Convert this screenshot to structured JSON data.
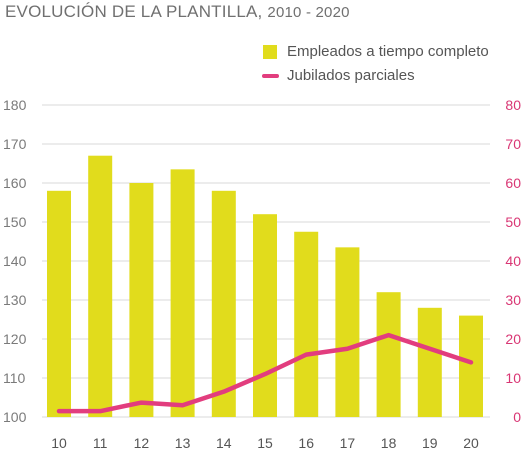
{
  "header": {
    "title_main": "EVOLUCIÓN DE LA PLANTILLA,",
    "title_years": "2010 - 2020"
  },
  "colors": {
    "bars": "#e1dc1c",
    "line": "#e23d7e",
    "right_axis": "#d93674",
    "grid": "#d8d8d8"
  },
  "chart_data": {
    "type": "bar",
    "title": "EVOLUCIÓN DE LA PLANTILLA, 2010 - 2020",
    "categories": [
      "10",
      "11",
      "12",
      "13",
      "14",
      "15",
      "16",
      "17",
      "18",
      "19",
      "20"
    ],
    "series": [
      {
        "name": "Empleados a tiempo completo",
        "type": "bar",
        "axis": "left",
        "values": [
          158,
          167,
          160,
          163.5,
          158,
          152,
          147.5,
          143.5,
          132,
          128,
          126
        ]
      },
      {
        "name": "Jubilados parciales",
        "type": "line",
        "axis": "right",
        "values": [
          1.5,
          1.5,
          3.7,
          3,
          6.5,
          11,
          16,
          17.5,
          21,
          17.5,
          14
        ]
      }
    ],
    "left_axis": {
      "ylim": [
        100,
        180
      ],
      "ticks": [
        "100",
        "110",
        "120",
        "130",
        "140",
        "150",
        "160",
        "170",
        "180"
      ]
    },
    "right_axis": {
      "ylim": [
        0,
        80
      ],
      "ticks": [
        "0",
        "10",
        "20",
        "30",
        "40",
        "50",
        "60",
        "70",
        "80"
      ]
    },
    "grid": true,
    "legend_position": "top-right"
  }
}
